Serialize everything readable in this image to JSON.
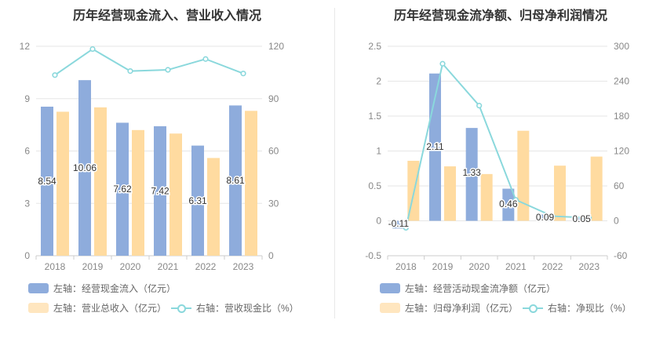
{
  "chart_data": [
    {
      "type": "bar",
      "title": "历年经营现金流入、营业收入情况",
      "categories": [
        "2018",
        "2019",
        "2020",
        "2021",
        "2022",
        "2023"
      ],
      "y_left": {
        "ticks": [
          "0",
          "3",
          "6",
          "9",
          "12"
        ],
        "range": [
          0,
          12
        ]
      },
      "y_right": {
        "ticks": [
          "0",
          "30",
          "60",
          "90",
          "120"
        ],
        "range": [
          0,
          120
        ]
      },
      "series": [
        {
          "name": "左轴：经营现金流入（亿元）",
          "kind": "bar",
          "axis": "left",
          "color": "#8eacdc",
          "values": [
            8.54,
            10.06,
            7.62,
            7.42,
            6.31,
            8.61
          ],
          "labels": [
            "8.54",
            "10.06",
            "7.62",
            "7.42",
            "6.31",
            "8.61"
          ]
        },
        {
          "name": "左轴：营业总收入（亿元）",
          "kind": "bar",
          "axis": "left",
          "color": "#ffdba0",
          "values": [
            8.25,
            8.5,
            7.2,
            7.0,
            5.6,
            8.3
          ]
        },
        {
          "name": "右轴：营收现金比（%）",
          "kind": "line",
          "axis": "right",
          "color": "#8ad8dc",
          "values": [
            103.5,
            118.4,
            105.8,
            106.5,
            112.7,
            104.4
          ]
        }
      ],
      "legend_position": "bottom-left",
      "grid": true
    },
    {
      "type": "bar",
      "title": "历年经营现金流净额、归母净利润情况",
      "categories": [
        "2018",
        "2019",
        "2020",
        "2021",
        "2022",
        "2023"
      ],
      "y_left": {
        "ticks": [
          "-0.5",
          "0",
          "0.5",
          "1",
          "1.5",
          "2",
          "2.5"
        ],
        "range": [
          -0.5,
          2.5
        ]
      },
      "y_right": {
        "ticks": [
          "-60",
          "0",
          "60",
          "120",
          "180",
          "240",
          "300"
        ],
        "range": [
          -60,
          300
        ]
      },
      "series": [
        {
          "name": "左轴：经营活动现金流净额（亿元）",
          "kind": "bar",
          "axis": "left",
          "color": "#8eacdc",
          "values": [
            -0.11,
            2.11,
            1.33,
            0.46,
            0.09,
            0.05
          ],
          "labels": [
            "-0.11",
            "2.11",
            "1.33",
            "0.46",
            "0.09",
            "0.05"
          ]
        },
        {
          "name": "左轴：归母净利润（亿元）",
          "kind": "bar",
          "axis": "left",
          "color": "#ffdba0",
          "values": [
            0.86,
            0.78,
            0.67,
            1.29,
            0.79,
            0.92
          ]
        },
        {
          "name": "右轴：净现比（%）",
          "kind": "line",
          "axis": "right",
          "color": "#8ad8dc",
          "values": [
            -12,
            270,
            198,
            36,
            8,
            5
          ]
        }
      ],
      "legend_position": "bottom-left",
      "grid": true
    }
  ]
}
